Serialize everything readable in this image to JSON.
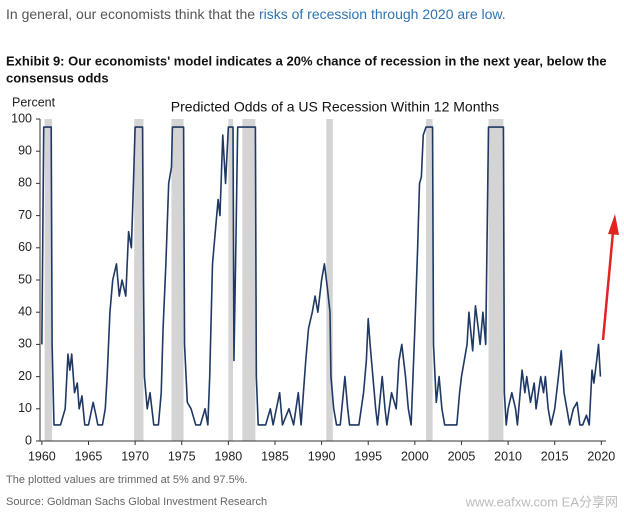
{
  "header": {
    "text": "In general, our economists think that the ",
    "link": "risks of recession through 2020 are low."
  },
  "exhibit_title": {
    "line1": "Exhibit 9: Our economists' model indicates a 20% chance of recession in the next year, below the",
    "line2": "consensus odds"
  },
  "chart_data": {
    "type": "line",
    "title": "Predicted Odds of a US Recession  Within 12 Months",
    "y_label": "Percent",
    "color": "#1f3864",
    "recession_color": "#d4d4d4",
    "xlim": [
      1959.8,
      2020.5
    ],
    "ylim": [
      0,
      100
    ],
    "xticks": [
      1960,
      1965,
      1970,
      1975,
      1980,
      1985,
      1990,
      1995,
      2000,
      2005,
      2010,
      2015,
      2020
    ],
    "yticks": [
      0,
      10,
      20,
      30,
      40,
      50,
      60,
      70,
      80,
      90,
      100
    ],
    "recessions": [
      [
        1960.3,
        1961.1
      ],
      [
        1969.9,
        1970.9
      ],
      [
        1973.9,
        1975.2
      ],
      [
        1980.0,
        1980.5
      ],
      [
        1981.5,
        1982.9
      ],
      [
        1990.5,
        1991.2
      ],
      [
        2001.2,
        2001.9
      ],
      [
        2007.9,
        2009.5
      ]
    ],
    "x": [
      1960.0,
      1960.2,
      1961.0,
      1961.1,
      1961.3,
      1962.0,
      1962.5,
      1962.8,
      1963.0,
      1963.2,
      1963.5,
      1963.8,
      1964.0,
      1964.3,
      1964.6,
      1965.0,
      1965.5,
      1965.8,
      1966.0,
      1966.5,
      1966.8,
      1967.0,
      1967.3,
      1967.6,
      1968.0,
      1968.3,
      1968.6,
      1969.0,
      1969.3,
      1969.6,
      1969.8,
      1970.0,
      1970.8,
      1970.9,
      1971.0,
      1971.3,
      1971.6,
      1972.0,
      1972.5,
      1972.8,
      1973.0,
      1973.3,
      1973.6,
      1973.9,
      1974.0,
      1975.2,
      1975.3,
      1975.6,
      1976.0,
      1976.5,
      1977.0,
      1977.5,
      1977.8,
      1978.0,
      1978.3,
      1978.6,
      1978.9,
      1979.1,
      1979.4,
      1979.7,
      1980.0,
      1980.5,
      1980.6,
      1980.8,
      1981.0,
      1982.9,
      1983.0,
      1983.2,
      1984.0,
      1984.5,
      1984.8,
      1985.5,
      1985.8,
      1986.5,
      1987.0,
      1987.5,
      1987.8,
      1988.3,
      1988.6,
      1989.0,
      1989.3,
      1989.6,
      1990.0,
      1990.3,
      1990.6,
      1990.9,
      1991.0,
      1991.3,
      1991.6,
      1992.0,
      1992.5,
      1992.8,
      1993.0,
      1994.0,
      1994.5,
      1994.8,
      1995.0,
      1995.2,
      1995.5,
      1995.8,
      1996.0,
      1996.5,
      1996.8,
      1997.0,
      1997.5,
      1998.0,
      1998.3,
      1998.6,
      1999.0,
      1999.3,
      1999.6,
      2000.0,
      2000.3,
      2000.5,
      2000.7,
      2000.9,
      2001.2,
      2001.9,
      2002.0,
      2002.3,
      2002.6,
      2002.9,
      2003.2,
      2004.5,
      2004.8,
      2005.0,
      2005.3,
      2005.6,
      2005.8,
      2006.2,
      2006.5,
      2006.8,
      2007.0,
      2007.3,
      2007.6,
      2007.9,
      2009.5,
      2009.6,
      2009.8,
      2010.0,
      2010.4,
      2010.8,
      2011.0,
      2011.5,
      2011.8,
      2012.0,
      2012.4,
      2012.8,
      2013.0,
      2013.5,
      2013.8,
      2014.0,
      2014.3,
      2014.6,
      2015.0,
      2015.4,
      2015.7,
      2016.0,
      2016.3,
      2016.6,
      2017.0,
      2017.4,
      2017.7,
      2018.0,
      2018.4,
      2018.7,
      2019.0,
      2019.2,
      2019.5,
      2019.7,
      2019.9
    ],
    "series": [
      {
        "values": [
          30,
          97.5,
          97.5,
          30,
          5,
          5,
          10,
          27,
          22,
          27,
          15,
          18,
          10,
          14,
          5,
          5,
          12,
          8,
          5,
          5,
          10,
          20,
          40,
          50,
          55,
          45,
          50,
          45,
          65,
          60,
          78,
          97.5,
          97.5,
          50,
          20,
          10,
          15,
          5,
          5,
          15,
          35,
          55,
          80,
          85,
          97.5,
          97.5,
          30,
          12,
          10,
          5,
          5,
          10,
          5,
          20,
          55,
          65,
          75,
          70,
          95,
          80,
          97.5,
          97.5,
          25,
          60,
          97.5,
          97.5,
          20,
          5,
          5,
          10,
          5,
          15,
          5,
          10,
          5,
          15,
          5,
          25,
          35,
          40,
          45,
          40,
          50,
          55,
          48,
          40,
          20,
          10,
          5,
          5,
          20,
          10,
          5,
          5,
          15,
          25,
          38,
          30,
          20,
          10,
          5,
          20,
          10,
          5,
          15,
          10,
          25,
          30,
          20,
          10,
          5,
          35,
          60,
          80,
          82,
          95,
          97.5,
          97.5,
          30,
          12,
          20,
          10,
          5,
          5,
          15,
          20,
          25,
          30,
          40,
          28,
          42,
          35,
          30,
          40,
          30,
          97.5,
          97.5,
          15,
          5,
          10,
          15,
          10,
          5,
          22,
          15,
          20,
          12,
          18,
          10,
          20,
          15,
          20,
          10,
          5,
          10,
          20,
          28,
          15,
          10,
          5,
          10,
          12,
          5,
          5,
          8,
          5,
          22,
          18,
          25,
          30,
          20
        ]
      }
    ]
  },
  "footnote": "The plotted values are trimmed at 5% and 97.5%.",
  "source": "Source: Goldman Sachs Global Investment Research",
  "watermark": "www.eafxw.com   EA分享网"
}
